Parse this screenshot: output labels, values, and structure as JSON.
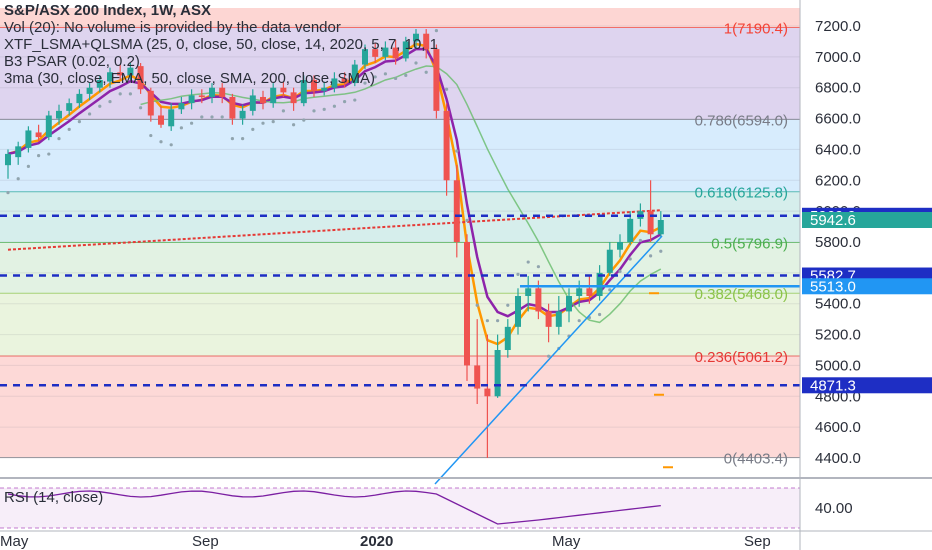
{
  "header": {
    "title": "S&P/ASX 200 Index, 1W, ASX",
    "indicators": [
      "Vol (20): No volume is provided by the data vendor",
      "XTF_LSMA+QLSMA (25, 0, close, 50, close, 14, 2020, 5, 7, 10, 1",
      "B3 PSAR (0.02, 0.2)",
      "3ma (30, close, EMA, 50, close, SMA, 200, close, SMA)"
    ]
  },
  "chart_data": {
    "type": "candlestick",
    "y_axis": {
      "range": [
        4300,
        7350
      ],
      "ticks": [
        "7200.0",
        "7000.0",
        "6800.0",
        "6600.0",
        "6400.0",
        "6200.0",
        "6000.0",
        "5800.0",
        "5600.0",
        "5400.0",
        "5200.0",
        "5000.0",
        "4800.0",
        "4600.0",
        "4400.0"
      ]
    },
    "x_axis": {
      "labels": [
        "May",
        "Sep",
        "2020",
        "May",
        "Sep"
      ]
    },
    "fib_levels": [
      {
        "label": "1(7190.4)",
        "value": 7190.4,
        "color": "#f44336"
      },
      {
        "label": "0.786(6594.0)",
        "value": 6594.0,
        "color": "#787b86"
      },
      {
        "label": "0.618(6125.8)",
        "value": 6125.8,
        "color": "#26a69a"
      },
      {
        "label": "0.5(5796.9)",
        "value": 5796.9,
        "color": "#4caf50"
      },
      {
        "label": "0.382(5468.0)",
        "value": 5468.0,
        "color": "#8bc34a"
      },
      {
        "label": "0.236(5061.2)",
        "value": 5061.2,
        "color": "#e53935"
      },
      {
        "label": "0(4403.4)",
        "value": 4403.4,
        "color": "#787b86"
      }
    ],
    "price_badges": [
      {
        "label": "5969.9",
        "value": 5969.9,
        "color": "#1e2ec4"
      },
      {
        "label": "5942.6",
        "value": 5942.6,
        "color": "#26a69a"
      },
      {
        "label": "5582.7",
        "value": 5582.7,
        "color": "#1e2ec4"
      },
      {
        "label": "5513.0",
        "value": 5513.0,
        "color": "#2196f3"
      },
      {
        "label": "4871.3",
        "value": 4871.3,
        "color": "#1e2ec4"
      }
    ],
    "dashed_levels": [
      5969.9,
      5582.7,
      4871.3
    ],
    "candles": [
      [
        6298,
        6371,
        6210,
        6400
      ],
      [
        6350,
        6420,
        6300,
        6450
      ],
      [
        6410,
        6523,
        6380,
        6550
      ],
      [
        6510,
        6480,
        6450,
        6560
      ],
      [
        6480,
        6620,
        6460,
        6650
      ],
      [
        6600,
        6650,
        6560,
        6690
      ],
      [
        6650,
        6700,
        6620,
        6730
      ],
      [
        6700,
        6760,
        6670,
        6790
      ],
      [
        6760,
        6800,
        6720,
        6830
      ],
      [
        6800,
        6850,
        6770,
        6880
      ],
      [
        6840,
        6900,
        6800,
        6930
      ],
      [
        6900,
        6880,
        6850,
        6950
      ],
      [
        6880,
        6930,
        6850,
        6960
      ],
      [
        6940,
        6790,
        6760,
        6960
      ],
      [
        6780,
        6620,
        6580,
        6800
      ],
      [
        6620,
        6560,
        6540,
        6680
      ],
      [
        6550,
        6660,
        6520,
        6700
      ],
      [
        6660,
        6700,
        6630,
        6740
      ],
      [
        6700,
        6750,
        6660,
        6790
      ],
      [
        6750,
        6740,
        6700,
        6790
      ],
      [
        6740,
        6800,
        6700,
        6830
      ],
      [
        6800,
        6740,
        6700,
        6830
      ],
      [
        6740,
        6600,
        6560,
        6760
      ],
      [
        6600,
        6650,
        6560,
        6690
      ],
      [
        6650,
        6750,
        6620,
        6790
      ],
      [
        6740,
        6700,
        6660,
        6780
      ],
      [
        6700,
        6800,
        6670,
        6830
      ],
      [
        6800,
        6770,
        6740,
        6840
      ],
      [
        6770,
        6700,
        6650,
        6800
      ],
      [
        6700,
        6850,
        6680,
        6880
      ],
      [
        6850,
        6780,
        6740,
        6880
      ],
      [
        6780,
        6800,
        6750,
        6840
      ],
      [
        6800,
        6860,
        6770,
        6900
      ],
      [
        6860,
        6830,
        6800,
        6900
      ],
      [
        6830,
        6950,
        6810,
        6980
      ],
      [
        6950,
        7050,
        6920,
        7080
      ],
      [
        7050,
        7000,
        6960,
        7090
      ],
      [
        7000,
        7060,
        6980,
        7100
      ],
      [
        7060,
        6990,
        6950,
        7110
      ],
      [
        6990,
        7100,
        6970,
        7130
      ],
      [
        7100,
        7150,
        7050,
        7180
      ],
      [
        7150,
        7050,
        6990,
        7180
      ],
      [
        7050,
        6650,
        6600,
        7080
      ],
      [
        6650,
        6200,
        6100,
        6700
      ],
      [
        6200,
        5800,
        5700,
        6300
      ],
      [
        5800,
        5000,
        4900,
        5850
      ],
      [
        5000,
        4850,
        4750,
        5300
      ],
      [
        4850,
        4800,
        4400,
        5200
      ],
      [
        4800,
        5100,
        4790,
        5200
      ],
      [
        5100,
        5250,
        5050,
        5300
      ],
      [
        5250,
        5450,
        5200,
        5500
      ],
      [
        5450,
        5500,
        5350,
        5580
      ],
      [
        5500,
        5350,
        5300,
        5550
      ],
      [
        5350,
        5250,
        5150,
        5400
      ],
      [
        5250,
        5350,
        5200,
        5450
      ],
      [
        5350,
        5450,
        5280,
        5500
      ],
      [
        5450,
        5500,
        5380,
        5550
      ],
      [
        5500,
        5450,
        5400,
        5580
      ],
      [
        5450,
        5600,
        5420,
        5650
      ],
      [
        5600,
        5750,
        5580,
        5800
      ],
      [
        5750,
        5800,
        5700,
        5850
      ],
      [
        5800,
        5950,
        5780,
        6000
      ],
      [
        5950,
        6000,
        5900,
        6050
      ],
      [
        6000,
        5850,
        5800,
        6200
      ],
      [
        5850,
        5942.6,
        5830,
        6000
      ]
    ],
    "rsi_panel": {
      "label": "RSI (14, close)",
      "ticks": [
        "40.00"
      ]
    }
  }
}
